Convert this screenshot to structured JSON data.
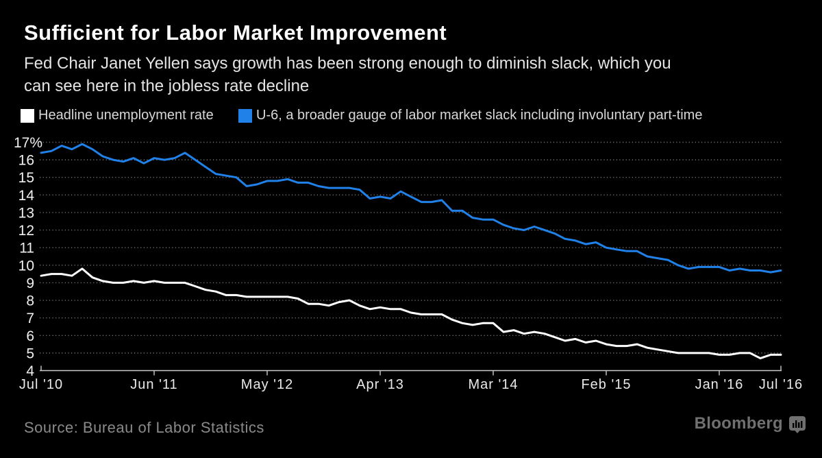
{
  "header": {
    "title": "Sufficient for Labor Market Improvement",
    "subtitle_lines": [
      "Fed Chair Janet Yellen says growth has been strong enough to diminish slack, which you",
      "can see here in the jobless rate decline"
    ]
  },
  "legend": {
    "items": [
      {
        "label": "Headline unemployment rate",
        "color": "#ffffff"
      },
      {
        "label": "U-6, a broader gauge of labor market slack including involuntary part-time",
        "color": "#2081e8"
      }
    ]
  },
  "footer": {
    "source": "Source: Bureau of Labor Statistics",
    "brand": "Bloomberg"
  },
  "colors": {
    "background": "#000000",
    "grid": "#777777",
    "axis": "#cccccc",
    "y_labels": "#f0f0f0",
    "x_labels": "#eaeaea",
    "headline_series": "#ffffff",
    "u6_series": "#2081e8"
  },
  "chart_data": {
    "type": "line",
    "title": "Sufficient for Labor Market Improvement",
    "x_start": "Jul 2010",
    "x_end": "Jul 2016",
    "x_unit": "month",
    "ylim": [
      4,
      17
    ],
    "grid": "dotted-horizontal",
    "legend_position": "top",
    "yticks": [
      {
        "value": 4,
        "label": "4"
      },
      {
        "value": 5,
        "label": "5"
      },
      {
        "value": 6,
        "label": "6"
      },
      {
        "value": 7,
        "label": "7"
      },
      {
        "value": 8,
        "label": "8"
      },
      {
        "value": 9,
        "label": "9"
      },
      {
        "value": 10,
        "label": "10"
      },
      {
        "value": 11,
        "label": "11"
      },
      {
        "value": 12,
        "label": "12"
      },
      {
        "value": 13,
        "label": "13"
      },
      {
        "value": 14,
        "label": "14"
      },
      {
        "value": 15,
        "label": "15"
      },
      {
        "value": 16,
        "label": "16"
      },
      {
        "value": 17,
        "label": "17%"
      }
    ],
    "xticks": [
      {
        "index": 0,
        "label": "Jul '10"
      },
      {
        "index": 11,
        "label": "Jun '11"
      },
      {
        "index": 22,
        "label": "May '12"
      },
      {
        "index": 33,
        "label": "Apr '13"
      },
      {
        "index": 44,
        "label": "Mar '14"
      },
      {
        "index": 55,
        "label": "Feb '15"
      },
      {
        "index": 66,
        "label": "Jan '16"
      },
      {
        "index": 72,
        "label": "Jul '16"
      }
    ],
    "series": [
      {
        "key": "headline-unemployment",
        "name": "Headline unemployment rate",
        "color": "#ffffff",
        "values": [
          9.4,
          9.5,
          9.5,
          9.4,
          9.8,
          9.3,
          9.1,
          9.0,
          9.0,
          9.1,
          9.0,
          9.1,
          9.0,
          9.0,
          9.0,
          8.8,
          8.6,
          8.5,
          8.3,
          8.3,
          8.2,
          8.2,
          8.2,
          8.2,
          8.2,
          8.1,
          7.8,
          7.8,
          7.7,
          7.9,
          8.0,
          7.7,
          7.5,
          7.6,
          7.5,
          7.5,
          7.3,
          7.2,
          7.2,
          7.2,
          6.9,
          6.7,
          6.6,
          6.7,
          6.7,
          6.2,
          6.3,
          6.1,
          6.2,
          6.1,
          5.9,
          5.7,
          5.8,
          5.6,
          5.7,
          5.5,
          5.4,
          5.4,
          5.5,
          5.3,
          5.2,
          5.1,
          5.0,
          5.0,
          5.0,
          5.0,
          4.9,
          4.9,
          5.0,
          5.0,
          4.7,
          4.9,
          4.9
        ]
      },
      {
        "key": "u6-rate",
        "name": "U-6, a broader gauge of labor market slack including involuntary part-time",
        "color": "#2081e8",
        "values": [
          16.4,
          16.5,
          16.8,
          16.6,
          16.9,
          16.6,
          16.2,
          16.0,
          15.9,
          16.1,
          15.8,
          16.1,
          16.0,
          16.1,
          16.4,
          16.0,
          15.6,
          15.2,
          15.1,
          15.0,
          14.5,
          14.6,
          14.8,
          14.8,
          14.9,
          14.7,
          14.7,
          14.5,
          14.4,
          14.4,
          14.4,
          14.3,
          13.8,
          13.9,
          13.8,
          14.2,
          13.9,
          13.6,
          13.6,
          13.7,
          13.1,
          13.1,
          12.7,
          12.6,
          12.6,
          12.3,
          12.1,
          12.0,
          12.2,
          12.0,
          11.8,
          11.5,
          11.4,
          11.2,
          11.3,
          11.0,
          10.9,
          10.8,
          10.8,
          10.5,
          10.4,
          10.3,
          10.0,
          9.8,
          9.9,
          9.9,
          9.9,
          9.7,
          9.8,
          9.7,
          9.7,
          9.6,
          9.7
        ]
      }
    ]
  }
}
